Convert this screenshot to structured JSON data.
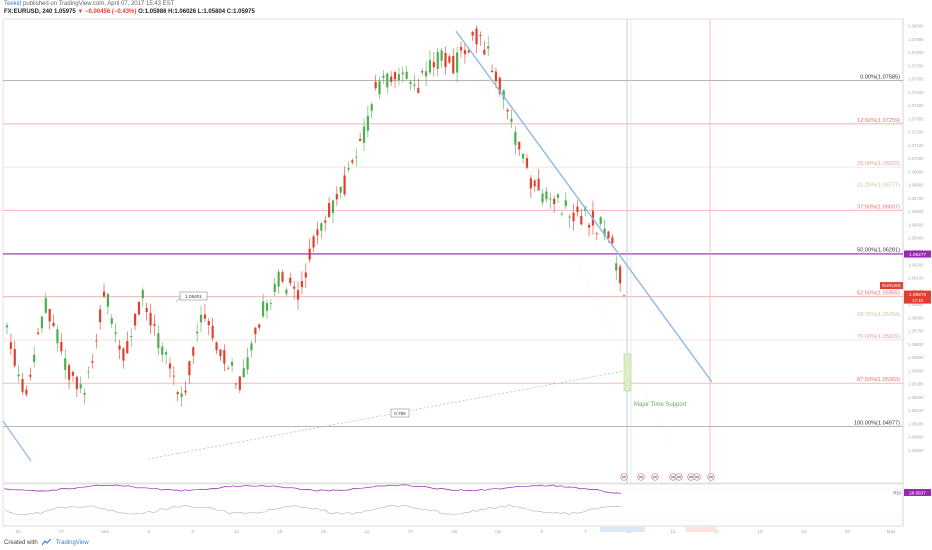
{
  "header": {
    "author": "Teekid",
    "published": "published on TradingView.com, April 07, 2017 15:43 EST",
    "symbol_line_prefix": "FX:EURUSD, 240",
    "last": "1.05975",
    "change": "▼ −0.00456 (−0.43%)",
    "ohlc": "O:1.05986 H:1.06026 L:1.05804 C:1.05975"
  },
  "footer": {
    "created_with": "Created with",
    "brand": "TradingView"
  },
  "colors": {
    "up": "#4caf50",
    "down": "#e2402f",
    "trendline": "#8fb9e6",
    "fib_red": "#e57373",
    "fib_gray": "#999999",
    "purple": "#9c27b0",
    "annotation_green": "#6aa84f"
  },
  "chart_data": {
    "type": "candlestick",
    "symbol": "FX:EURUSD",
    "timeframe": "240",
    "ylim": [
      1.0455,
      1.0805
    ],
    "price_axis_ticks": [
      "1.08000",
      "1.07900",
      "1.07800",
      "1.07700",
      "1.07600",
      "1.07500",
      "1.07400",
      "1.07300",
      "1.07200",
      "1.07100",
      "1.07000",
      "1.06900",
      "1.06800",
      "1.06700",
      "1.06600",
      "1.06500",
      "1.06400",
      "1.06300",
      "1.06200",
      "1.06100",
      "1.06000",
      "1.05900",
      "1.05800",
      "1.05700",
      "1.05600",
      "1.05500",
      "1.05400",
      "1.05300",
      "1.05200",
      "1.05100",
      "1.05000",
      "1.04900",
      "1.04800"
    ],
    "time_axis_ticks": [
      "22",
      "27",
      "Mar",
      "6",
      "8",
      "13",
      "15",
      "20",
      "22",
      "27",
      "29",
      "Apr",
      "5",
      "7",
      "10",
      "12",
      "17",
      "19",
      "24",
      "26",
      "May"
    ],
    "fib_levels": [
      {
        "label": "0.00%(1.07585)",
        "value": 1.07585,
        "style": "gray"
      },
      {
        "label": "12.50%(1.07259)",
        "value": 1.07259,
        "style": "red"
      },
      {
        "label": "25.00%(1.06933)",
        "value": 1.06933,
        "style": "faint"
      },
      {
        "label": "31.25%(1.06771)",
        "value": 1.06771,
        "style": "faint_green"
      },
      {
        "label": "37.50%(1.06607)",
        "value": 1.06607,
        "style": "red"
      },
      {
        "label": "50.00%(1.06281)",
        "value": 1.06281,
        "style": "gray"
      },
      {
        "label": "62.50%(1.05955)",
        "value": 1.05955,
        "style": "red"
      },
      {
        "label": "68.75%(1.05794)",
        "value": 1.05794,
        "style": "faint_green"
      },
      {
        "label": "75.00%(1.05629)",
        "value": 1.05629,
        "style": "faint"
      },
      {
        "label": "87.50%(1.05303)",
        "value": 1.05303,
        "style": "red"
      },
      {
        "label": "100.00%(1.04977)",
        "value": 1.04977,
        "style": "gray"
      }
    ],
    "horizontal_line": {
      "value": 1.06277,
      "label": "1.06277"
    },
    "last_price_label": {
      "symbol": "EURUSD",
      "value": "1.05975",
      "countdown": "17:16"
    },
    "callouts": [
      "1.06401",
      "0.785"
    ],
    "annotation": "Major Time Support",
    "rsi": {
      "label": "RSI",
      "value": "28.5837"
    },
    "bar_count": 160,
    "trend_anchors": [
      [
        0,
        1.057
      ],
      [
        6,
        1.052
      ],
      [
        12,
        1.059
      ],
      [
        18,
        1.0545
      ],
      [
        24,
        1.052
      ],
      [
        30,
        1.06
      ],
      [
        36,
        1.055
      ],
      [
        42,
        1.0595
      ],
      [
        48,
        1.0555
      ],
      [
        54,
        1.052
      ],
      [
        60,
        1.0585
      ],
      [
        66,
        1.0555
      ],
      [
        72,
        1.0528
      ],
      [
        78,
        1.058
      ],
      [
        84,
        1.061
      ],
      [
        90,
        1.0595
      ],
      [
        96,
        1.065
      ],
      [
        102,
        1.067
      ],
      [
        108,
        1.07
      ],
      [
        114,
        1.0755
      ],
      [
        120,
        1.0765
      ],
      [
        126,
        1.075
      ],
      [
        132,
        1.0775
      ],
      [
        138,
        1.077
      ],
      [
        144,
        1.0795
      ],
      [
        150,
        1.077
      ],
      [
        156,
        1.072
      ],
      [
        162,
        1.068
      ],
      [
        168,
        1.0668
      ],
      [
        174,
        1.066
      ],
      [
        180,
        1.0655
      ],
      [
        186,
        1.064
      ],
      [
        190,
        1.0598
      ]
    ]
  }
}
